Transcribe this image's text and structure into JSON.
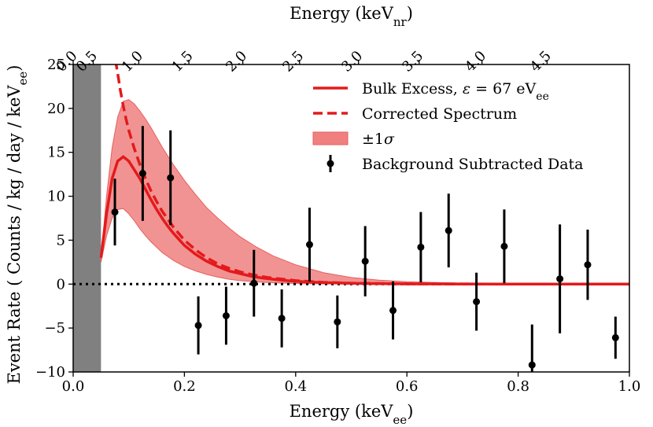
{
  "chart_data": {
    "type": "line",
    "xlabel": "Energy (keV",
    "xlabel_sub": "ee",
    "xlabel_close": ")",
    "top_xlabel": "Energy (keV",
    "top_xlabel_sub": "nr",
    "top_xlabel_close": ")",
    "ylabel": "Event Rate ( Counts / kg / day / keV",
    "ylabel_sub": "ee",
    "ylabel_close": ")",
    "xlim": [
      0.0,
      1.0
    ],
    "ylim": [
      -10,
      25
    ],
    "xticks": [
      {
        "value": 0.0,
        "label": "0.0"
      },
      {
        "value": 0.2,
        "label": "0.2"
      },
      {
        "value": 0.4,
        "label": "0.4"
      },
      {
        "value": 0.6,
        "label": "0.6"
      },
      {
        "value": 0.8,
        "label": "0.8"
      },
      {
        "value": 1.0,
        "label": "1.0"
      }
    ],
    "yticks": [
      {
        "value": -10,
        "label": "−10"
      },
      {
        "value": -5,
        "label": "−5"
      },
      {
        "value": 0,
        "label": "0"
      },
      {
        "value": 5,
        "label": "5"
      },
      {
        "value": 10,
        "label": "10"
      },
      {
        "value": 15,
        "label": "15"
      },
      {
        "value": 20,
        "label": "20"
      },
      {
        "value": 25,
        "label": "25"
      }
    ],
    "top_xticks": [
      {
        "value": 0.0,
        "label": "0.0"
      },
      {
        "value": 0.036,
        "label": "0.5"
      },
      {
        "value": 0.118,
        "label": "1.0"
      },
      {
        "value": 0.208,
        "label": "1.5"
      },
      {
        "value": 0.305,
        "label": "2.0"
      },
      {
        "value": 0.407,
        "label": "2.5"
      },
      {
        "value": 0.513,
        "label": "3.0"
      },
      {
        "value": 0.622,
        "label": "3.5"
      },
      {
        "value": 0.735,
        "label": "4.0"
      },
      {
        "value": 0.852,
        "label": "4.5"
      }
    ],
    "excluded_region": [
      0.0,
      0.05
    ],
    "zero_line": 0,
    "colors": {
      "red": "#e31a1c",
      "band": "#f08080",
      "data": "#000000",
      "excluded": "#808080"
    },
    "legend": {
      "position": "top-right",
      "entries": [
        {
          "label": "Bulk Excess, ",
          "symbol": "ε",
          "math": " = 67 eV",
          "sub": "ee",
          "style": "solid"
        },
        {
          "label": "Corrected Spectrum",
          "style": "dashed"
        },
        {
          "label": "±1",
          "symbol": "σ",
          "style": "band"
        },
        {
          "label": "Background Subtracted Data",
          "style": "errorbar"
        }
      ]
    },
    "bulk_excess": {
      "x": [
        0.05,
        0.06,
        0.07,
        0.08,
        0.09,
        0.1,
        0.11,
        0.12,
        0.13,
        0.14,
        0.15,
        0.16,
        0.17,
        0.18,
        0.19,
        0.2,
        0.22,
        0.24,
        0.26,
        0.28,
        0.3,
        0.32,
        0.34,
        0.36,
        0.38,
        0.4,
        0.45,
        0.5,
        0.55,
        0.6,
        0.7,
        0.8,
        0.9,
        1.0
      ],
      "y": [
        3.0,
        8.0,
        12.0,
        14.0,
        14.5,
        14.0,
        13.0,
        12.0,
        10.8,
        9.6,
        8.5,
        7.5,
        6.6,
        5.8,
        5.1,
        4.4,
        3.4,
        2.6,
        2.0,
        1.5,
        1.2,
        0.9,
        0.7,
        0.55,
        0.42,
        0.32,
        0.17,
        0.09,
        0.05,
        0.03,
        0.01,
        0.0,
        0.0,
        0.0
      ]
    },
    "corrected_spectrum": {
      "x": [
        0.076,
        0.08,
        0.085,
        0.09,
        0.095,
        0.1,
        0.11,
        0.12,
        0.13,
        0.14,
        0.15,
        0.16,
        0.18,
        0.2,
        0.22,
        0.24,
        0.26,
        0.28,
        0.3,
        0.32,
        0.35,
        0.4,
        0.45,
        0.5,
        0.6,
        0.7,
        0.8,
        0.9,
        1.0
      ],
      "y": [
        25.5,
        24.0,
        22.0,
        20.3,
        18.8,
        17.5,
        15.4,
        13.6,
        12.0,
        10.6,
        9.4,
        8.3,
        6.5,
        5.0,
        3.9,
        3.0,
        2.3,
        1.8,
        1.4,
        1.1,
        0.75,
        0.4,
        0.2,
        0.1,
        0.03,
        0.01,
        0.0,
        0.0,
        0.0
      ]
    },
    "band_upper": {
      "x": [
        0.05,
        0.06,
        0.07,
        0.08,
        0.09,
        0.1,
        0.11,
        0.12,
        0.13,
        0.14,
        0.16,
        0.18,
        0.2,
        0.22,
        0.24,
        0.26,
        0.28,
        0.3,
        0.33,
        0.36,
        0.4,
        0.45,
        0.5,
        0.55,
        0.6,
        0.7,
        0.8,
        0.9,
        1.0
      ],
      "y": [
        3.0,
        10.0,
        15.5,
        19.0,
        20.8,
        21.0,
        20.5,
        19.7,
        18.8,
        17.8,
        15.6,
        13.6,
        11.8,
        10.2,
        8.7,
        7.5,
        6.4,
        5.4,
        4.2,
        3.2,
        2.2,
        1.3,
        0.75,
        0.45,
        0.27,
        0.1,
        0.04,
        0.02,
        0.01
      ]
    },
    "band_lower": {
      "x": [
        0.05,
        0.06,
        0.07,
        0.08,
        0.09,
        0.1,
        0.11,
        0.12,
        0.13,
        0.14,
        0.16,
        0.18,
        0.2,
        0.22,
        0.24,
        0.26,
        0.28,
        0.3,
        0.33,
        0.36,
        0.4,
        0.45,
        0.5,
        0.55,
        0.6,
        0.7,
        0.8,
        0.9,
        1.0
      ],
      "y": [
        2.5,
        5.5,
        7.5,
        8.5,
        8.6,
        8.0,
        7.2,
        6.3,
        5.5,
        4.8,
        3.6,
        2.7,
        2.0,
        1.5,
        1.1,
        0.8,
        0.55,
        0.4,
        0.25,
        0.15,
        0.07,
        0.02,
        0.01,
        0.0,
        0.0,
        0.0,
        0.0,
        0.0,
        0.0
      ]
    },
    "data_points": [
      {
        "x": 0.075,
        "y": 8.2,
        "err": 3.8
      },
      {
        "x": 0.125,
        "y": 12.6,
        "err": 5.4
      },
      {
        "x": 0.175,
        "y": 12.1,
        "err": 5.4
      },
      {
        "x": 0.225,
        "y": -4.7,
        "err": 3.3
      },
      {
        "x": 0.275,
        "y": -3.6,
        "err": 3.3
      },
      {
        "x": 0.325,
        "y": 0.1,
        "err": 3.8
      },
      {
        "x": 0.375,
        "y": -3.9,
        "err": 3.3
      },
      {
        "x": 0.425,
        "y": 4.5,
        "err": 4.2
      },
      {
        "x": 0.475,
        "y": -4.3,
        "err": 3.0
      },
      {
        "x": 0.525,
        "y": 2.6,
        "err": 4.0
      },
      {
        "x": 0.575,
        "y": -3.0,
        "err": 3.3
      },
      {
        "x": 0.625,
        "y": 4.2,
        "err": 4.0
      },
      {
        "x": 0.675,
        "y": 6.1,
        "err": 4.2
      },
      {
        "x": 0.725,
        "y": -2.0,
        "err": 3.3
      },
      {
        "x": 0.775,
        "y": 4.3,
        "err": 4.2
      },
      {
        "x": 0.825,
        "y": -9.2,
        "err": 4.6
      },
      {
        "x": 0.875,
        "y": 0.6,
        "err": 6.2
      },
      {
        "x": 0.925,
        "y": 2.2,
        "err": 4.0
      },
      {
        "x": 0.975,
        "y": -6.1,
        "err": 2.4
      }
    ]
  }
}
